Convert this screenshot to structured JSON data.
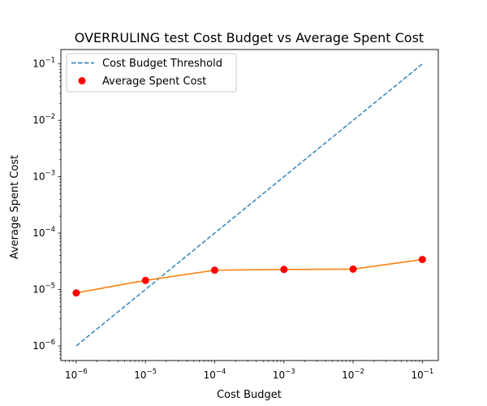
{
  "chart_data": {
    "type": "line",
    "title": "OVERRULING test Cost Budget vs Average Spent Cost",
    "xlabel": "Cost Budget",
    "ylabel": "Average Spent Cost",
    "xscale": "log",
    "yscale": "log",
    "xlim": [
      6e-07,
      0.17
    ],
    "ylim": [
      5.5e-07,
      0.18
    ],
    "grid": false,
    "legend_position": "top-left",
    "x_ticks": [
      {
        "base": "10",
        "exp": "−6",
        "value": 1e-06
      },
      {
        "base": "10",
        "exp": "−5",
        "value": 1e-05
      },
      {
        "base": "10",
        "exp": "−4",
        "value": 0.0001
      },
      {
        "base": "10",
        "exp": "−3",
        "value": 0.001
      },
      {
        "base": "10",
        "exp": "−2",
        "value": 0.01
      },
      {
        "base": "10",
        "exp": "−1",
        "value": 0.1
      }
    ],
    "y_ticks": [
      {
        "base": "10",
        "exp": "−6",
        "value": 1e-06
      },
      {
        "base": "10",
        "exp": "−5",
        "value": 1e-05
      },
      {
        "base": "10",
        "exp": "−4",
        "value": 0.0001
      },
      {
        "base": "10",
        "exp": "−3",
        "value": 0.001
      },
      {
        "base": "10",
        "exp": "−2",
        "value": 0.01
      },
      {
        "base": "10",
        "exp": "−1",
        "value": 0.1
      }
    ],
    "series": [
      {
        "name": "Cost Budget Threshold",
        "style": "dashed-line",
        "color": "#1f77b4",
        "x": [
          1e-06,
          0.1
        ],
        "y": [
          1e-06,
          0.1
        ]
      },
      {
        "name": "Average Spent Cost",
        "style": "scatter",
        "color": "#ff0000",
        "x": [
          1e-06,
          1e-05,
          0.0001,
          0.001,
          0.01,
          0.1
        ],
        "y": [
          8.7e-06,
          1.45e-05,
          2.2e-05,
          2.27e-05,
          2.3e-05,
          3.4e-05
        ]
      },
      {
        "style": "line",
        "color": "#ff7f0e",
        "x": [
          1e-06,
          1e-05,
          0.0001,
          0.001,
          0.01,
          0.1
        ],
        "y": [
          8.7e-06,
          1.45e-05,
          2.2e-05,
          2.27e-05,
          2.3e-05,
          3.4e-05
        ]
      }
    ]
  }
}
